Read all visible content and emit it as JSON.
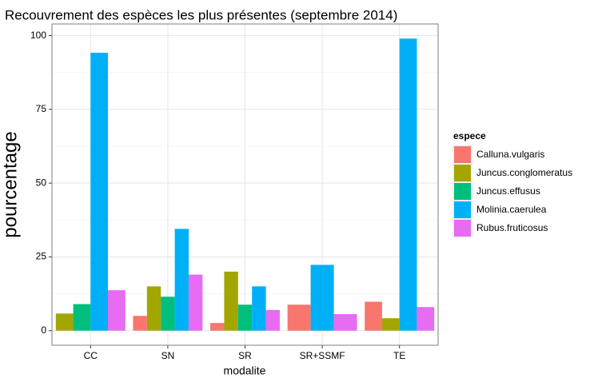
{
  "chart_data": {
    "type": "bar",
    "title": "Recouvrement des espèces les plus présentes (septembre 2014)",
    "x_label": "modalite",
    "y_label": "pourcentage",
    "legend_title": "espece",
    "categories": [
      "CC",
      "SN",
      "SR",
      "SR+SSMF",
      "TE"
    ],
    "series": [
      {
        "name": "Calluna.vulgaris",
        "color": "#F8766D",
        "values": [
          null,
          5,
          2.6,
          8.8,
          9.8
        ]
      },
      {
        "name": "Juncus.conglomeratus",
        "color": "#A3A500",
        "values": [
          5.8,
          15,
          20,
          null,
          4.2
        ]
      },
      {
        "name": "Juncus.effusus",
        "color": "#00BF7D",
        "values": [
          9,
          11.5,
          8.8,
          null,
          null
        ]
      },
      {
        "name": "Molinia.caerulea",
        "color": "#00B0F6",
        "values": [
          94.2,
          34.5,
          15,
          22.3,
          99
        ]
      },
      {
        "name": "Rubus.fruticosus",
        "color": "#E76BF3",
        "values": [
          13.7,
          19,
          7,
          5.6,
          8
        ]
      }
    ],
    "ylim": [
      -4.95,
      103.95
    ],
    "yticks": [
      0,
      25,
      50,
      75,
      100
    ],
    "grid": true,
    "legend": "right"
  }
}
